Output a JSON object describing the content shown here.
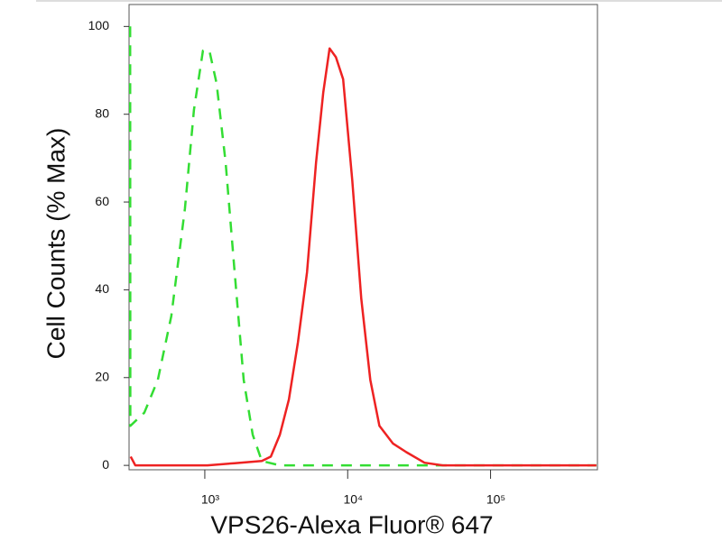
{
  "chart_data": {
    "type": "line",
    "xlabel": "VPS26-Alexa Fluor® 647",
    "ylabel": "Cell Counts (% Max)",
    "xscale": "log",
    "xlim": [
      295,
      560000
    ],
    "ylim": [
      -1,
      105
    ],
    "xticks": [
      {
        "value": 1000,
        "label": "10³"
      },
      {
        "value": 10000,
        "label": "10⁴"
      },
      {
        "value": 100000,
        "label": "10⁵"
      }
    ],
    "yticks": [
      0,
      20,
      40,
      60,
      80,
      100
    ],
    "series": [
      {
        "color": "#33dd33",
        "linestyle": "dashed",
        "x": [
          300,
          301,
          377,
          469,
          583,
          726,
          840,
          971,
          1076,
          1209,
          1399,
          1618,
          1871,
          2165,
          2505,
          3350,
          550000
        ],
        "values": [
          100,
          9,
          12,
          19.5,
          34,
          58.5,
          81,
          94.5,
          94.5,
          87,
          69,
          44,
          19.5,
          7,
          1,
          0,
          0
        ]
      },
      {
        "color": "#ee2222",
        "linestyle": "solid",
        "x": [
          303,
          326,
          675,
          1044,
          1618,
          2505,
          2898,
          3350,
          3878,
          4486,
          5190,
          6003,
          6745,
          7468,
          8274,
          9290,
          10760,
          12450,
          14390,
          16670,
          20710,
          25770,
          34500,
          46200,
          550000
        ],
        "values": [
          2,
          0,
          0,
          0,
          0.5,
          1,
          2,
          7,
          15,
          28,
          44,
          69,
          85,
          95,
          93,
          88,
          65,
          38,
          19.5,
          9,
          5,
          3,
          0.6,
          0,
          0
        ]
      }
    ]
  }
}
